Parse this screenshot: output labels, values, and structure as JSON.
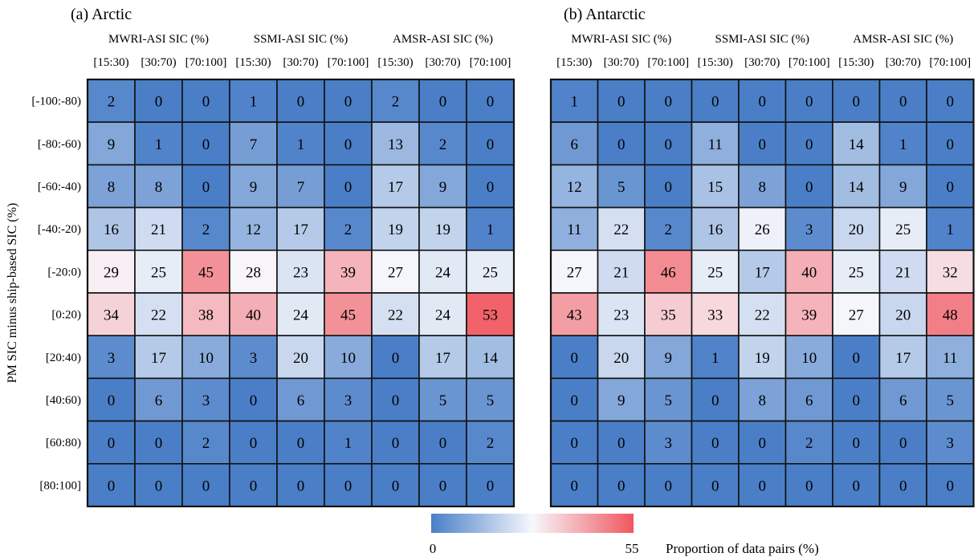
{
  "chart_data": [
    {
      "type": "heatmap",
      "title": "(a) Arctic",
      "ylabel": "PM SIC minus ship-based SIC (%)",
      "products": [
        "MWRI-ASI SIC (%)",
        "SSMI-ASI SIC (%)",
        "AMSR-ASI SIC (%)"
      ],
      "bins": [
        "[15:30)",
        "[30:70)",
        "[70:100]"
      ],
      "rows": [
        "[-100:-80)",
        "[-80:-60)",
        "[-60:-40)",
        "[-40:-20)",
        "[-20:0)",
        "[0:20)",
        "[20:40)",
        "[40:60)",
        "[60:80)",
        "[80:100]"
      ],
      "values": [
        [
          2,
          0,
          0,
          1,
          0,
          0,
          2,
          0,
          0
        ],
        [
          9,
          1,
          0,
          7,
          1,
          0,
          13,
          2,
          0
        ],
        [
          8,
          8,
          0,
          9,
          7,
          0,
          17,
          9,
          0
        ],
        [
          16,
          21,
          2,
          12,
          17,
          2,
          19,
          19,
          1
        ],
        [
          29,
          25,
          45,
          28,
          23,
          39,
          27,
          24,
          25
        ],
        [
          34,
          22,
          38,
          40,
          24,
          45,
          22,
          24,
          53
        ],
        [
          3,
          17,
          10,
          3,
          20,
          10,
          0,
          17,
          14
        ],
        [
          0,
          6,
          3,
          0,
          6,
          3,
          0,
          5,
          5
        ],
        [
          0,
          0,
          2,
          0,
          0,
          1,
          0,
          0,
          2
        ],
        [
          0,
          0,
          0,
          0,
          0,
          0,
          0,
          0,
          0
        ]
      ],
      "vmin": 0,
      "vmax": 55
    },
    {
      "type": "heatmap",
      "title": "(b) Antarctic",
      "products": [
        "MWRI-ASI SIC (%)",
        "SSMI-ASI SIC (%)",
        "AMSR-ASI SIC (%)"
      ],
      "bins": [
        "[15:30)",
        "[30:70)",
        "[70:100]"
      ],
      "rows": [
        "[-100:-80)",
        "[-80:-60)",
        "[-60:-40)",
        "[-40:-20)",
        "[-20:0)",
        "[0:20)",
        "[20:40)",
        "[40:60)",
        "[60:80)",
        "[80:100]"
      ],
      "values": [
        [
          1,
          0,
          0,
          0,
          0,
          0,
          0,
          0,
          0
        ],
        [
          6,
          0,
          0,
          11,
          0,
          0,
          14,
          1,
          0
        ],
        [
          12,
          5,
          0,
          15,
          8,
          0,
          14,
          9,
          0
        ],
        [
          11,
          22,
          2,
          16,
          26,
          3,
          20,
          25,
          1
        ],
        [
          27,
          21,
          46,
          25,
          17,
          40,
          25,
          21,
          32
        ],
        [
          43,
          23,
          35,
          33,
          22,
          39,
          27,
          20,
          48
        ],
        [
          0,
          20,
          9,
          1,
          19,
          10,
          0,
          17,
          11
        ],
        [
          0,
          9,
          5,
          0,
          8,
          6,
          0,
          6,
          5
        ],
        [
          0,
          0,
          3,
          0,
          0,
          2,
          0,
          0,
          3
        ],
        [
          0,
          0,
          0,
          0,
          0,
          0,
          0,
          0,
          0
        ]
      ],
      "vmin": 0,
      "vmax": 55
    }
  ],
  "colorbar": {
    "min_label": "0",
    "max_label": "55",
    "title": "Proportion of data pairs (%)",
    "colors": {
      "low": "#4a7fc8",
      "mid": "#f7f8fc",
      "high": "#f0565f"
    }
  }
}
